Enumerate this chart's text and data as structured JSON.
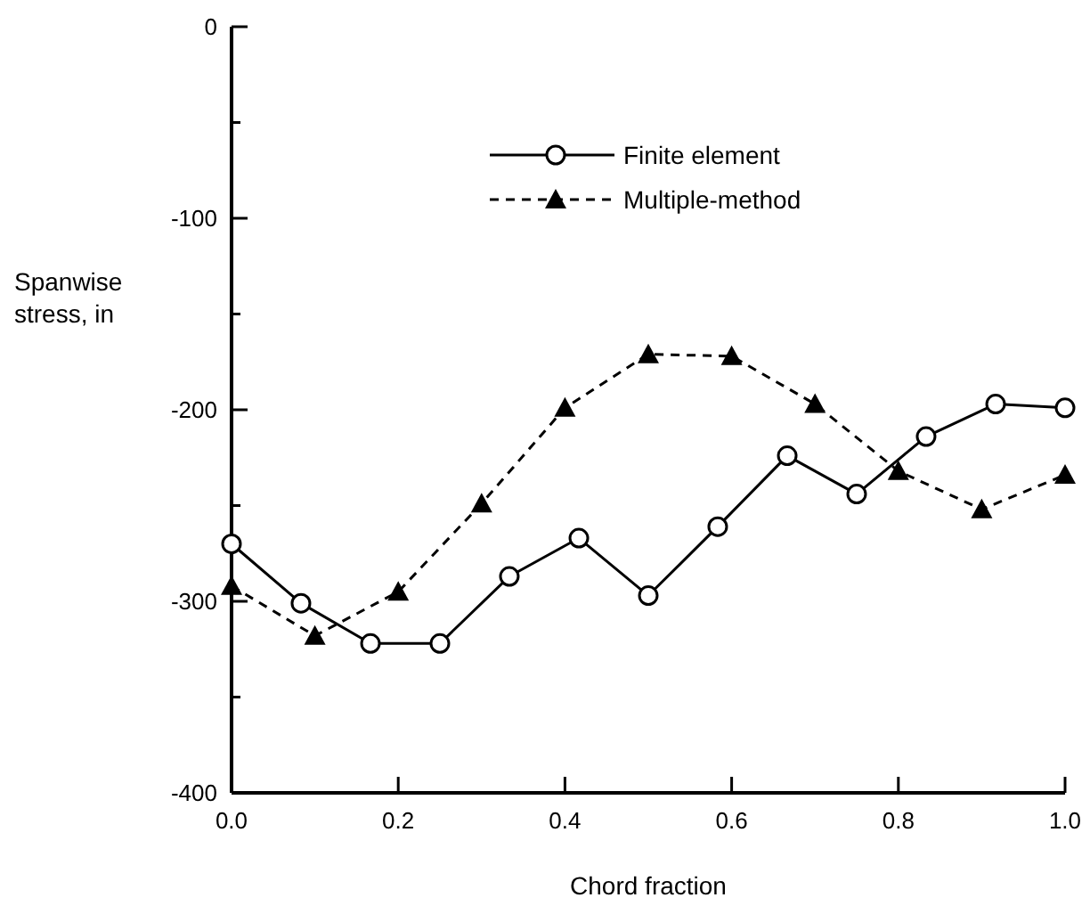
{
  "chart_data": {
    "type": "line",
    "xlabel": "Chord fraction",
    "ylabel": "Spanwise\nstress, in",
    "xlim": [
      0,
      1
    ],
    "ylim": [
      -400,
      0
    ],
    "xticks": [
      {
        "value": 0,
        "label": "0.0"
      },
      {
        "value": 0.2,
        "label": "0.2"
      },
      {
        "value": 0.4,
        "label": "0.4"
      },
      {
        "value": 0.6,
        "label": "0.6"
      },
      {
        "value": 0.8,
        "label": "0.8"
      },
      {
        "value": 1,
        "label": "1.0"
      }
    ],
    "yticks": [
      {
        "value": -400,
        "label": "-400"
      },
      {
        "value": -350,
        "label": null
      },
      {
        "value": -300,
        "label": "-300"
      },
      {
        "value": -250,
        "label": null
      },
      {
        "value": -200,
        "label": "-200"
      },
      {
        "value": -150,
        "label": null
      },
      {
        "value": -100,
        "label": "-100"
      },
      {
        "value": -50,
        "label": null
      },
      {
        "value": 0,
        "label": "0"
      }
    ],
    "legend": "top",
    "grid": false,
    "series": [
      {
        "name": "Finite element",
        "color": "#000000",
        "marker": "circle",
        "line_style": "solid",
        "x": [
          0,
          0.0833,
          0.1667,
          0.25,
          0.3333,
          0.4167,
          0.5,
          0.5833,
          0.6667,
          0.75,
          0.8333,
          0.9167,
          1
        ],
        "values": [
          -270,
          -301,
          -322,
          -322,
          -287,
          -267,
          -297,
          -261,
          -224,
          -244,
          -214,
          -197,
          -199
        ]
      },
      {
        "name": "Multiple-method",
        "color": "#000000",
        "marker": "triangle",
        "line_style": "dashed",
        "x": [
          0,
          0.1,
          0.2,
          0.3,
          0.4,
          0.5,
          0.6,
          0.7,
          0.8,
          0.9,
          1
        ],
        "values": [
          -292,
          -318,
          -295,
          -249,
          -199,
          -171,
          -172,
          -197,
          -232,
          -252,
          -234
        ]
      }
    ]
  }
}
